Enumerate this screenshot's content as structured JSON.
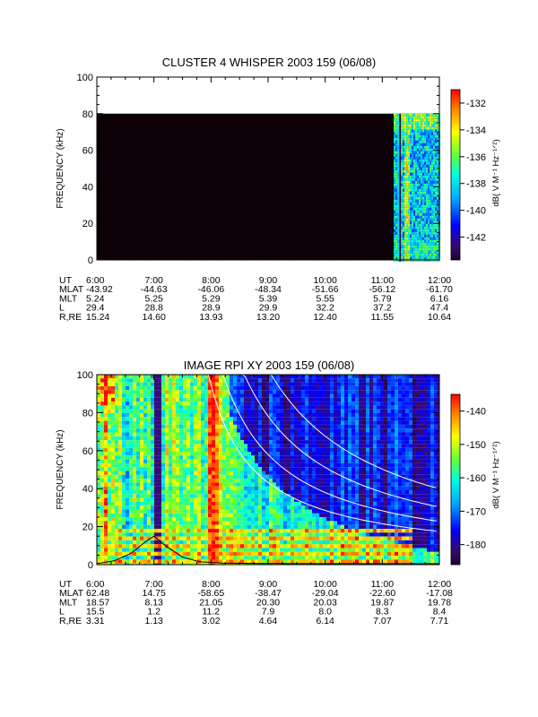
{
  "colors": {
    "background": "#ffffff",
    "axis": "#000000",
    "cluster_fill": "#0c0006",
    "cluster_tail_bg": "#1f1fb4",
    "rpi_curves": "#ffffff",
    "rpi_profile": "#000000"
  },
  "chart_data": [
    {
      "type": "heatmap",
      "title": "CLUSTER 4 WHISPER 2003 159 (06/08)",
      "xlabel": "",
      "ylabel": "FREQUENCY (kHz)",
      "x_ticks": [
        "6:00",
        "7:00",
        "8:00",
        "9:00",
        "10:00",
        "11:00",
        "12:00"
      ],
      "xlim_hours": [
        6,
        12
      ],
      "y_ticks": [
        "0",
        "20",
        "40",
        "60",
        "80",
        "100"
      ],
      "ylim": [
        0,
        100
      ],
      "data_freq_max": 80,
      "data_onset_hour": 11.2,
      "colorbar": {
        "label": "dB( V M⁻¹ Hz⁻¹ᐟ²)",
        "ticks": [
          "-132",
          "-134",
          "-136",
          "-138",
          "-140",
          "-142"
        ],
        "tick_values": [
          -132,
          -134,
          -136,
          -138,
          -140,
          -142
        ],
        "range": [
          -143.7,
          -131
        ]
      },
      "ephemeris": {
        "labels": [
          "UT",
          "MLAT",
          "MLT",
          "L",
          "R,RE"
        ],
        "columns": [
          [
            "6:00",
            "-43.92",
            "5.24",
            "29.4",
            "15.24"
          ],
          [
            "7:00",
            "-44.63",
            "5.25",
            "28.8",
            "14.60"
          ],
          [
            "8:00",
            "-46.06",
            "5.29",
            "28.9",
            "13.93"
          ],
          [
            "9:00",
            "-48.34",
            "5.39",
            "29.9",
            "13.20"
          ],
          [
            "10:00",
            "-51.66",
            "5.55",
            "32.2",
            "12.40"
          ],
          [
            "11:00",
            "-56.12",
            "5.79",
            "37.2",
            "11.55"
          ],
          [
            "12:00",
            "-61.70",
            "6.16",
            "47.4",
            "10.64"
          ]
        ]
      }
    },
    {
      "type": "heatmap",
      "title": "IMAGE RPI XY 2003 159 (06/08)",
      "xlabel": "",
      "ylabel": "FREQUENCY (kHz)",
      "x_ticks": [
        "6:00",
        "7:00",
        "8:00",
        "9:00",
        "10:00",
        "11:00",
        "12:00"
      ],
      "xlim_hours": [
        6,
        12
      ],
      "y_ticks": [
        "0",
        "20",
        "40",
        "60",
        "80",
        "100"
      ],
      "ylim": [
        0,
        100
      ],
      "colorbar": {
        "label": "dB( V M⁻¹ Hz⁻¹ᐟ²)",
        "ticks": [
          "-140",
          "-150",
          "-160",
          "-170",
          "-180"
        ],
        "tick_values": [
          -140,
          -150,
          -160,
          -170,
          -180
        ],
        "range": [
          -186,
          -135
        ]
      },
      "dark_gap_hours": [
        6.95,
        7.1
      ],
      "overlay_curves_note": "",
      "ephemeris": {
        "labels": [
          "UT",
          "MLAT",
          "MLT",
          "L",
          "R,RE"
        ],
        "columns": [
          [
            "6:00",
            "62.48",
            "18.57",
            "15.5",
            "3.31"
          ],
          [
            "7:00",
            "14.75",
            "8.13",
            "1.2",
            "1.13"
          ],
          [
            "8:00",
            "-58.65",
            "21.05",
            "11.2",
            "3.02"
          ],
          [
            "9:00",
            "-38.47",
            "20.30",
            "7.9",
            "4.64"
          ],
          [
            "10:00",
            "-29.04",
            "20.03",
            "8.0",
            "6.14"
          ],
          [
            "11:00",
            "-22.60",
            "19.87",
            "8.3",
            "7.07"
          ],
          [
            "12:00",
            "-17.08",
            "19.78",
            "8.4",
            "7.71"
          ]
        ]
      }
    }
  ]
}
